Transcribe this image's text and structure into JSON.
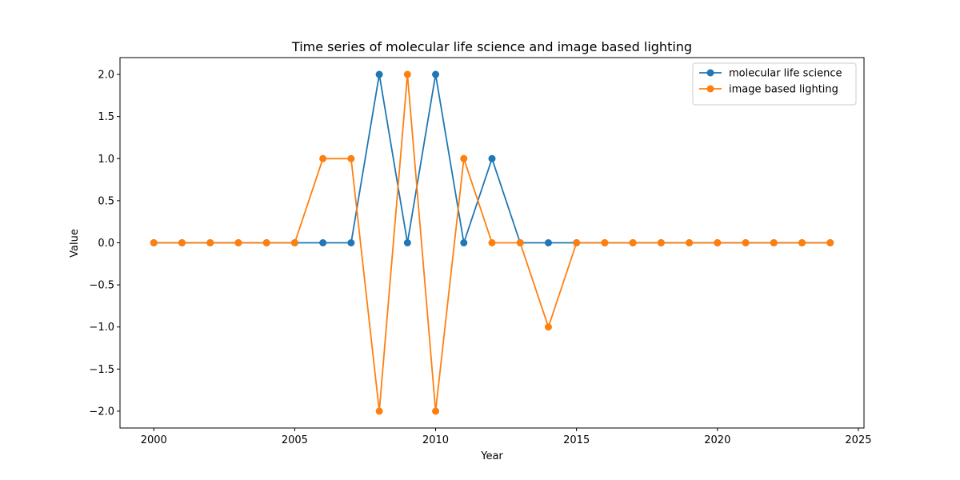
{
  "chart_data": {
    "type": "line",
    "title": "Time series of molecular life science and image based lighting",
    "xlabel": "Year",
    "ylabel": "Value",
    "xlim": [
      1998.8,
      2025.2
    ],
    "ylim": [
      -2.2,
      2.2
    ],
    "xticks": [
      2000,
      2005,
      2010,
      2015,
      2020,
      2025
    ],
    "yticks": [
      -2.0,
      -1.5,
      -1.0,
      -0.5,
      0.0,
      0.5,
      1.0,
      1.5,
      2.0
    ],
    "grid": false,
    "legend_position": "top-right",
    "x": [
      2000,
      2001,
      2002,
      2003,
      2004,
      2005,
      2006,
      2007,
      2008,
      2009,
      2010,
      2011,
      2012,
      2013,
      2014,
      2015,
      2016,
      2017,
      2018,
      2019,
      2020,
      2021,
      2022,
      2023,
      2024
    ],
    "series": [
      {
        "name": "molecular life science",
        "color": "#1f77b4",
        "values": [
          0,
          0,
          0,
          0,
          0,
          0,
          0,
          0,
          2,
          0,
          2,
          0,
          1,
          0,
          0,
          0,
          0,
          0,
          0,
          0,
          0,
          0,
          0,
          0,
          0
        ]
      },
      {
        "name": "image based lighting",
        "color": "#ff7f0e",
        "values": [
          0,
          0,
          0,
          0,
          0,
          0,
          1,
          1,
          -2,
          2,
          -2,
          1,
          0,
          0,
          -1,
          0,
          0,
          0,
          0,
          0,
          0,
          0,
          0,
          0,
          0
        ]
      }
    ]
  }
}
